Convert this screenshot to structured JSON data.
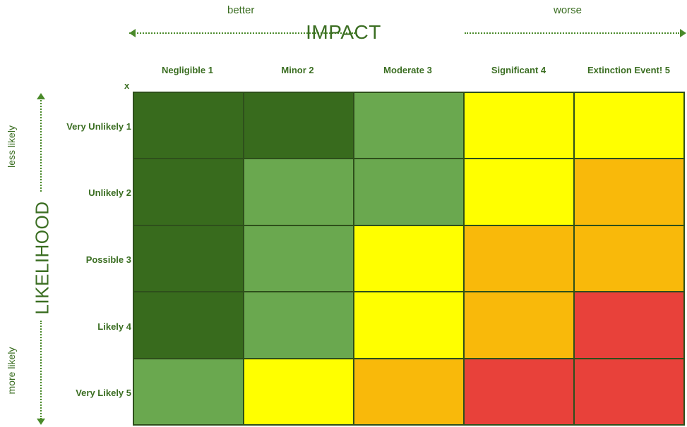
{
  "impact_axis": {
    "title": "IMPACT",
    "left_note": "better",
    "right_note": "worse"
  },
  "likelihood_axis": {
    "title": "LIKELIHOOD",
    "top_note": "less likely",
    "bottom_note": "more likely"
  },
  "corner_mark": "x",
  "columns": [
    "Negligible 1",
    "Minor 2",
    "Moderate 3",
    "Significant 4",
    "Extinction Event! 5"
  ],
  "rows": [
    "Very Unlikely 1",
    "Unlikely 2",
    "Possible 3",
    "Likely 4",
    "Very Likely 5"
  ],
  "colors": {
    "dark_green": "#386b1d",
    "light_green": "#6aa84f",
    "yellow": "#ffff00",
    "orange": "#f9b90a",
    "red": "#e8413a",
    "text_green": "#3b6e22"
  },
  "grid": [
    [
      "dark_green",
      "dark_green",
      "light_green",
      "yellow",
      "yellow"
    ],
    [
      "dark_green",
      "light_green",
      "light_green",
      "yellow",
      "orange"
    ],
    [
      "dark_green",
      "light_green",
      "yellow",
      "orange",
      "orange"
    ],
    [
      "dark_green",
      "light_green",
      "yellow",
      "orange",
      "red"
    ],
    [
      "light_green",
      "yellow",
      "orange",
      "red",
      "red"
    ]
  ]
}
